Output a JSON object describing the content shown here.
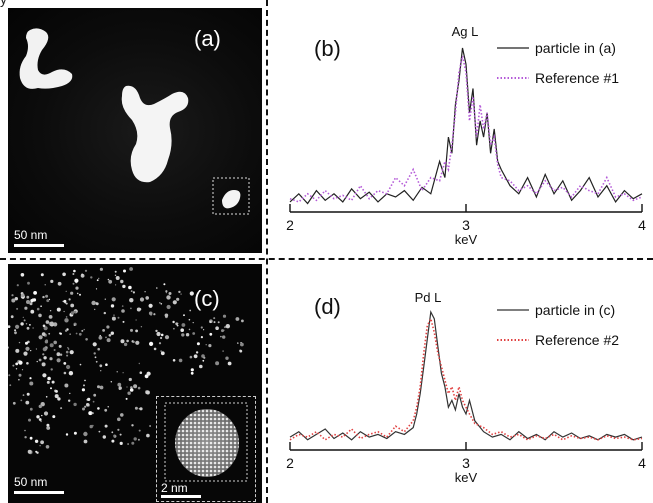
{
  "figure": {
    "corner_text": "y",
    "panels": {
      "a": {
        "label": "(a)",
        "scale": "50 nm"
      },
      "b": {
        "label": "(b)"
      },
      "c": {
        "label": "(c)",
        "scale": "50 nm",
        "inset_scale": "2 nm"
      },
      "d": {
        "label": "(d)"
      }
    }
  },
  "chart_data": [
    {
      "type": "line",
      "panel": "(b)",
      "annotation": "Ag L",
      "xlabel": "keV",
      "xlim": [
        2,
        4
      ],
      "ticks": [
        "2",
        "3",
        "4"
      ],
      "legend_position": "top-right",
      "series": [
        {
          "name": "particle in (a)",
          "color": "#222222",
          "style": "solid",
          "x": [
            2.0,
            2.05,
            2.1,
            2.15,
            2.2,
            2.25,
            2.3,
            2.35,
            2.4,
            2.45,
            2.5,
            2.55,
            2.6,
            2.65,
            2.7,
            2.75,
            2.8,
            2.85,
            2.88,
            2.9,
            2.92,
            2.94,
            2.96,
            2.98,
            3.0,
            3.02,
            3.04,
            3.06,
            3.08,
            3.1,
            3.12,
            3.14,
            3.16,
            3.18,
            3.2,
            3.25,
            3.3,
            3.35,
            3.4,
            3.45,
            3.5,
            3.55,
            3.6,
            3.65,
            3.7,
            3.75,
            3.8,
            3.85,
            3.9,
            3.95,
            4.0
          ],
          "y": [
            0.05,
            0.1,
            0.04,
            0.12,
            0.06,
            0.1,
            0.05,
            0.13,
            0.07,
            0.11,
            0.05,
            0.1,
            0.08,
            0.12,
            0.06,
            0.14,
            0.1,
            0.3,
            0.2,
            0.45,
            0.35,
            0.65,
            0.8,
            1.0,
            0.9,
            0.6,
            0.75,
            0.4,
            0.55,
            0.45,
            0.6,
            0.35,
            0.5,
            0.3,
            0.25,
            0.15,
            0.1,
            0.2,
            0.08,
            0.22,
            0.1,
            0.18,
            0.06,
            0.12,
            0.2,
            0.08,
            0.15,
            0.05,
            0.12,
            0.07,
            0.1
          ]
        },
        {
          "name": "Reference #1",
          "color": "#b45ad8",
          "style": "dotted",
          "x": [
            2.0,
            2.05,
            2.1,
            2.15,
            2.2,
            2.25,
            2.3,
            2.35,
            2.4,
            2.45,
            2.5,
            2.55,
            2.6,
            2.65,
            2.7,
            2.75,
            2.8,
            2.85,
            2.88,
            2.9,
            2.92,
            2.94,
            2.96,
            2.98,
            3.0,
            3.02,
            3.04,
            3.06,
            3.08,
            3.1,
            3.12,
            3.14,
            3.16,
            3.18,
            3.2,
            3.25,
            3.3,
            3.35,
            3.4,
            3.45,
            3.5,
            3.55,
            3.6,
            3.65,
            3.7,
            3.75,
            3.8,
            3.85,
            3.9,
            3.95,
            4.0
          ],
          "y": [
            0.07,
            0.05,
            0.1,
            0.06,
            0.12,
            0.07,
            0.09,
            0.06,
            0.15,
            0.07,
            0.12,
            0.1,
            0.2,
            0.15,
            0.25,
            0.12,
            0.2,
            0.18,
            0.3,
            0.25,
            0.4,
            0.6,
            0.85,
            0.95,
            0.85,
            0.55,
            0.7,
            0.45,
            0.65,
            0.5,
            0.6,
            0.4,
            0.45,
            0.28,
            0.2,
            0.18,
            0.12,
            0.15,
            0.1,
            0.18,
            0.12,
            0.14,
            0.08,
            0.15,
            0.12,
            0.1,
            0.2,
            0.08,
            0.1,
            0.06,
            0.08
          ]
        }
      ]
    },
    {
      "type": "line",
      "panel": "(d)",
      "annotation": "Pd L",
      "xlabel": "keV",
      "xlim": [
        2,
        4
      ],
      "ticks": [
        "2",
        "3",
        "4"
      ],
      "legend_position": "top-right",
      "series": [
        {
          "name": "particle in (c)",
          "color": "#333333",
          "style": "solid",
          "x": [
            2.0,
            2.05,
            2.1,
            2.15,
            2.2,
            2.25,
            2.3,
            2.35,
            2.4,
            2.45,
            2.5,
            2.55,
            2.6,
            2.65,
            2.7,
            2.72,
            2.74,
            2.76,
            2.78,
            2.8,
            2.82,
            2.84,
            2.86,
            2.88,
            2.9,
            2.92,
            2.94,
            2.96,
            2.98,
            3.0,
            3.02,
            3.05,
            3.1,
            3.15,
            3.2,
            3.25,
            3.3,
            3.35,
            3.4,
            3.45,
            3.5,
            3.55,
            3.6,
            3.65,
            3.7,
            3.75,
            3.8,
            3.85,
            3.9,
            3.95,
            4.0
          ],
          "y": [
            0.08,
            0.12,
            0.06,
            0.1,
            0.14,
            0.07,
            0.11,
            0.06,
            0.12,
            0.08,
            0.1,
            0.07,
            0.12,
            0.1,
            0.15,
            0.25,
            0.4,
            0.6,
            0.8,
            1.0,
            0.95,
            0.75,
            0.55,
            0.45,
            0.3,
            0.35,
            0.28,
            0.4,
            0.3,
            0.25,
            0.35,
            0.2,
            0.12,
            0.08,
            0.1,
            0.06,
            0.12,
            0.07,
            0.1,
            0.06,
            0.12,
            0.08,
            0.11,
            0.07,
            0.09,
            0.06,
            0.1,
            0.08,
            0.1,
            0.06,
            0.08
          ]
        },
        {
          "name": "Reference #2",
          "color": "#e04040",
          "style": "dotted",
          "x": [
            2.0,
            2.05,
            2.1,
            2.15,
            2.2,
            2.25,
            2.3,
            2.35,
            2.4,
            2.45,
            2.5,
            2.55,
            2.6,
            2.65,
            2.7,
            2.72,
            2.74,
            2.76,
            2.78,
            2.8,
            2.82,
            2.84,
            2.86,
            2.88,
            2.9,
            2.92,
            2.94,
            2.96,
            2.98,
            3.0,
            3.02,
            3.05,
            3.1,
            3.15,
            3.2,
            3.25,
            3.3,
            3.35,
            3.4,
            3.45,
            3.5,
            3.55,
            3.6,
            3.65,
            3.7,
            3.75,
            3.8,
            3.85,
            3.9,
            3.95,
            4.0
          ],
          "y": [
            0.06,
            0.1,
            0.08,
            0.12,
            0.06,
            0.1,
            0.08,
            0.14,
            0.07,
            0.1,
            0.12,
            0.08,
            0.16,
            0.12,
            0.2,
            0.3,
            0.45,
            0.7,
            0.9,
            0.95,
            0.85,
            0.7,
            0.6,
            0.5,
            0.4,
            0.45,
            0.35,
            0.45,
            0.35,
            0.3,
            0.25,
            0.18,
            0.15,
            0.1,
            0.12,
            0.08,
            0.1,
            0.06,
            0.09,
            0.07,
            0.1,
            0.06,
            0.09,
            0.07,
            0.08,
            0.06,
            0.09,
            0.07,
            0.08,
            0.06,
            0.07
          ]
        }
      ]
    }
  ]
}
